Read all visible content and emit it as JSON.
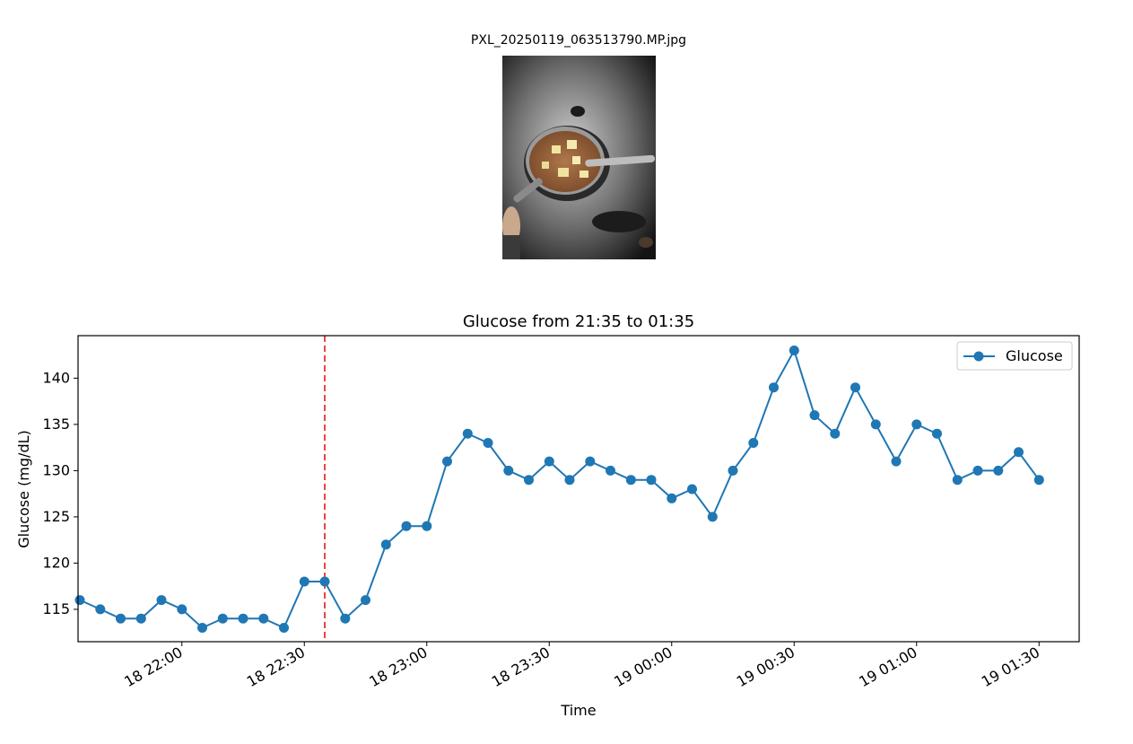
{
  "image_panel": {
    "title": "PXL_20250119_063513790.MP.jpg"
  },
  "chart_data": {
    "type": "line",
    "title": "Glucose from 21:35 to 01:35",
    "xlabel": "Time",
    "ylabel": "Glucose (mg/dL)",
    "x_tick_labels": [
      "18 22:00",
      "18 22:30",
      "18 23:00",
      "18 23:30",
      "19 00:00",
      "19 00:30",
      "19 01:00",
      "19 01:30"
    ],
    "y_tick_labels": [
      "115",
      "120",
      "125",
      "130",
      "135",
      "140"
    ],
    "y_ticks": [
      115,
      120,
      125,
      130,
      135,
      140
    ],
    "ylim": [
      111.5,
      144.6
    ],
    "xlim": [
      "2025-01-18 21:35",
      "2025-01-19 01:35"
    ],
    "x_tick_times": [
      "2025-01-18 22:00",
      "2025-01-18 22:30",
      "2025-01-18 23:00",
      "2025-01-18 23:30",
      "2025-01-19 00:00",
      "2025-01-19 00:30",
      "2025-01-19 01:00",
      "2025-01-19 01:30"
    ],
    "grid": false,
    "legend_position": "top-right",
    "series": [
      {
        "name": "Glucose",
        "color": "#1f77b4",
        "marker": "circle",
        "x": [
          "2025-01-18 21:35",
          "2025-01-18 21:40",
          "2025-01-18 21:45",
          "2025-01-18 21:50",
          "2025-01-18 21:55",
          "2025-01-18 22:00",
          "2025-01-18 22:05",
          "2025-01-18 22:10",
          "2025-01-18 22:15",
          "2025-01-18 22:20",
          "2025-01-18 22:25",
          "2025-01-18 22:30",
          "2025-01-18 22:35",
          "2025-01-18 22:40",
          "2025-01-18 22:45",
          "2025-01-18 22:50",
          "2025-01-18 22:55",
          "2025-01-18 23:00",
          "2025-01-18 23:05",
          "2025-01-18 23:10",
          "2025-01-18 23:15",
          "2025-01-18 23:20",
          "2025-01-18 23:25",
          "2025-01-18 23:30",
          "2025-01-18 23:35",
          "2025-01-18 23:40",
          "2025-01-18 23:45",
          "2025-01-18 23:50",
          "2025-01-18 23:55",
          "2025-01-19 00:00",
          "2025-01-19 00:05",
          "2025-01-19 00:10",
          "2025-01-19 00:15",
          "2025-01-19 00:20",
          "2025-01-19 00:25",
          "2025-01-19 00:30",
          "2025-01-19 00:35",
          "2025-01-19 00:40",
          "2025-01-19 00:45",
          "2025-01-19 00:50",
          "2025-01-19 00:55",
          "2025-01-19 01:00",
          "2025-01-19 01:05",
          "2025-01-19 01:10",
          "2025-01-19 01:15",
          "2025-01-19 01:20",
          "2025-01-19 01:25",
          "2025-01-19 01:30"
        ],
        "y": [
          116,
          115,
          114,
          114,
          116,
          115,
          113,
          114,
          114,
          114,
          113,
          118,
          118,
          114,
          116,
          122,
          124,
          124,
          131,
          134,
          133,
          130,
          129,
          131,
          129,
          131,
          130,
          129,
          129,
          127,
          128,
          125,
          130,
          133,
          139,
          143,
          136,
          134,
          139,
          135,
          131,
          135,
          134,
          129,
          130,
          130,
          132,
          129
        ]
      }
    ],
    "annotations": [
      {
        "type": "vertical-line",
        "x": "2025-01-18 22:35",
        "color": "#ee4444",
        "style": "dashed"
      }
    ]
  }
}
